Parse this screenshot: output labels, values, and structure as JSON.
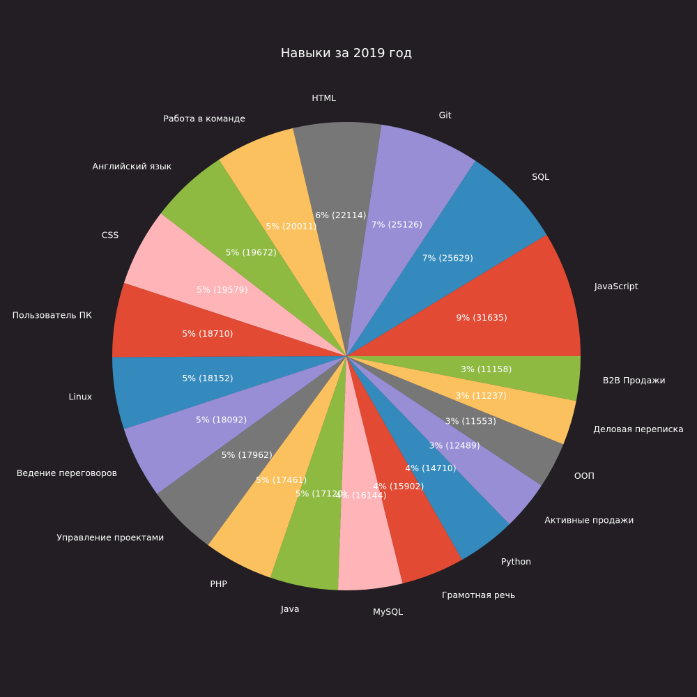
{
  "chart_data": {
    "type": "pie",
    "title": "Навыки за 2019 год",
    "start_angle_deg": 0,
    "direction": "counterclockwise",
    "legend": "none",
    "colors": [
      "#e24a33",
      "#348abd",
      "#988ed5",
      "#777777",
      "#fbc15e",
      "#8eba42",
      "#ffb5b8"
    ],
    "slices": [
      {
        "label": "JavaScript",
        "value": 31635,
        "pct_label": "9%  (31635)"
      },
      {
        "label": "SQL",
        "value": 25629,
        "pct_label": "7%  (25629)"
      },
      {
        "label": "Git",
        "value": 25126,
        "pct_label": "7%  (25126)"
      },
      {
        "label": "HTML",
        "value": 22114,
        "pct_label": "6%  (22114)"
      },
      {
        "label": "Работа в команде",
        "value": 20011,
        "pct_label": "5%  (20011)"
      },
      {
        "label": "Английский язык",
        "value": 19672,
        "pct_label": "5%  (19672)"
      },
      {
        "label": "CSS",
        "value": 19579,
        "pct_label": "5%  (19579)"
      },
      {
        "label": "Пользователь ПК",
        "value": 18710,
        "pct_label": "5%  (18710)"
      },
      {
        "label": "Linux",
        "value": 18152,
        "pct_label": "5%  (18152)"
      },
      {
        "label": "Ведение переговоров",
        "value": 18092,
        "pct_label": "5%  (18092)"
      },
      {
        "label": "Управление проектами",
        "value": 17962,
        "pct_label": "5%  (17962)"
      },
      {
        "label": "PHP",
        "value": 17461,
        "pct_label": "5%  (17461)"
      },
      {
        "label": "Java",
        "value": 17120,
        "pct_label": "5%  (17120)"
      },
      {
        "label": "MySQL",
        "value": 16144,
        "pct_label": "4%  (16144)"
      },
      {
        "label": "Грамотная речь",
        "value": 15902,
        "pct_label": "4%  (15902)"
      },
      {
        "label": "Python",
        "value": 14710,
        "pct_label": "4%  (14710)"
      },
      {
        "label": "Активные продажи",
        "value": 12489,
        "pct_label": "3%  (12489)"
      },
      {
        "label": "ООП",
        "value": 11553,
        "pct_label": "3%  (11553)"
      },
      {
        "label": "Деловая переписка",
        "value": 11237,
        "pct_label": "3%  (11237)"
      },
      {
        "label": "B2B Продажи",
        "value": 11158,
        "pct_label": "3%  (11158)"
      }
    ]
  }
}
